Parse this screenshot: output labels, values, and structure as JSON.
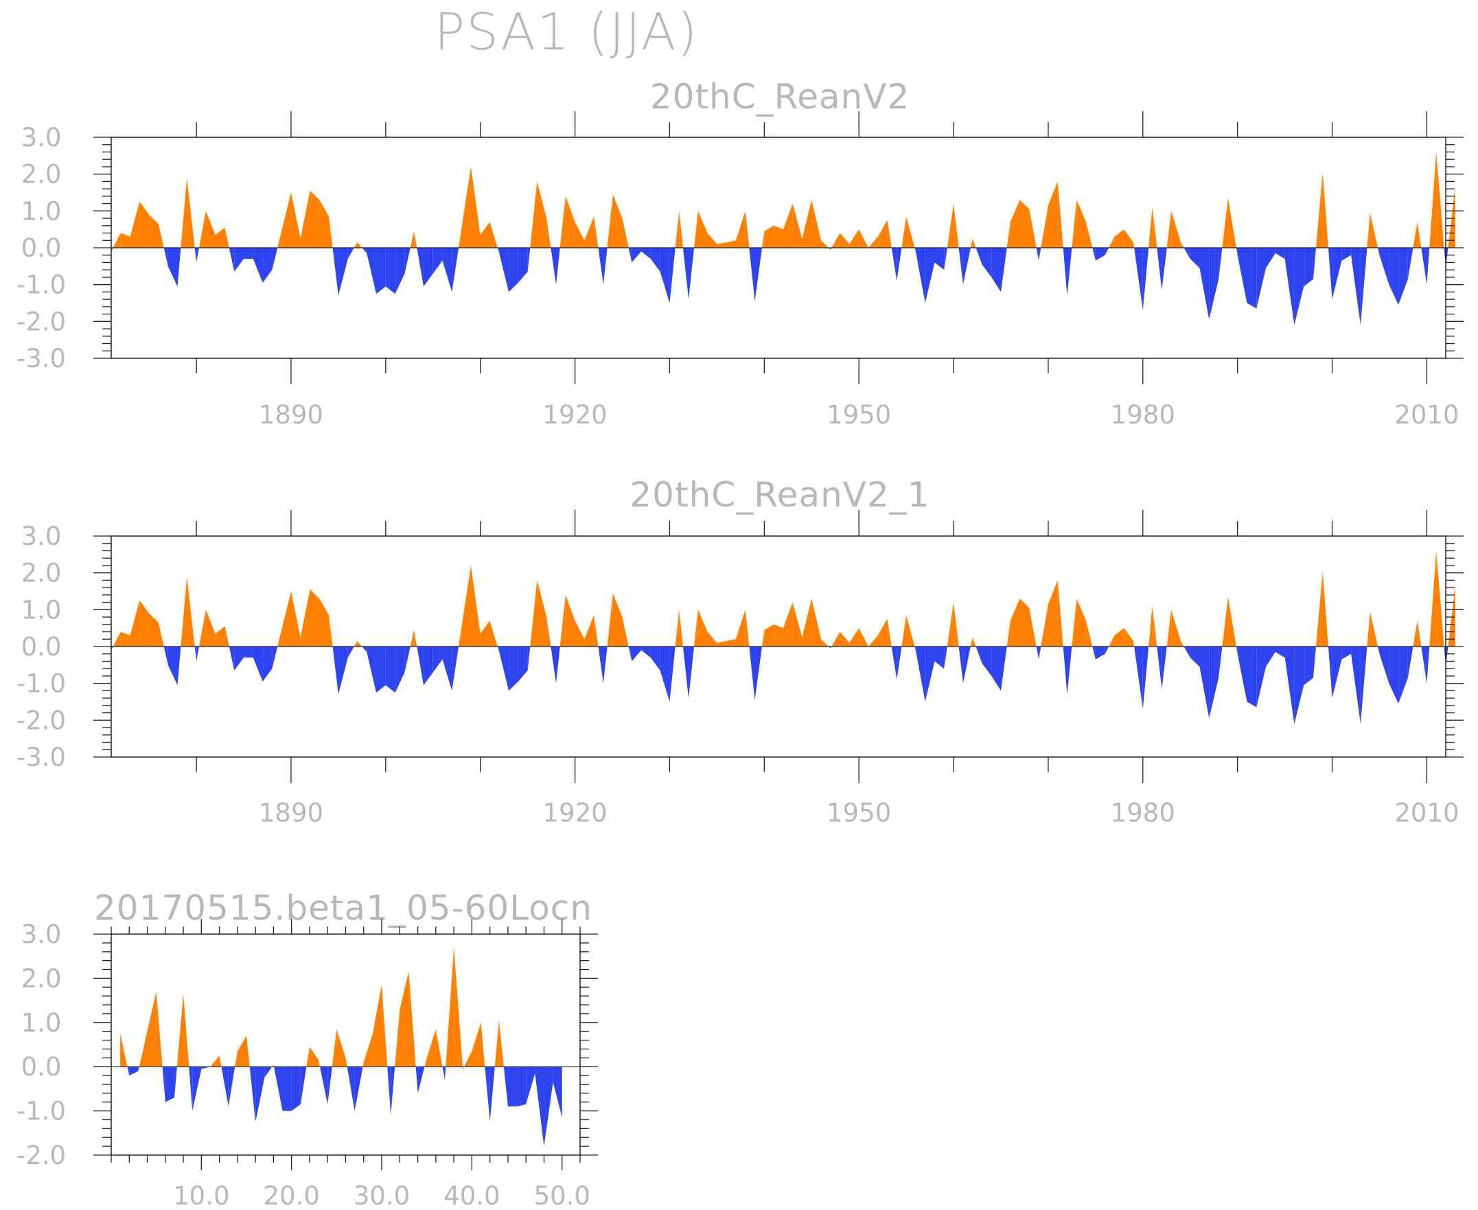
{
  "title": "PSA1  (JJA)",
  "colors": {
    "positive": "#ff8000",
    "negative": "#2e44f0",
    "text": "#b8b8b8"
  },
  "chart_data": [
    {
      "type": "area",
      "title": "20thC_ReanV2",
      "xlim": [
        1871,
        2012
      ],
      "ylim": [
        -3.0,
        3.0
      ],
      "xticks": [
        1890,
        1920,
        1950,
        1980,
        2010
      ],
      "xtick_labels": [
        "1890",
        "1920",
        "1950",
        "1980",
        "2010"
      ],
      "yticks": [
        -3.0,
        -2.0,
        -1.0,
        0.0,
        1.0,
        2.0,
        3.0
      ],
      "ytick_labels": [
        "-3.0",
        "-2.0",
        "-1.0",
        "0.0",
        "1.0",
        "2.0",
        "3.0"
      ],
      "x_start": 1871,
      "values": [
        -0.1,
        0.4,
        0.3,
        1.25,
        0.9,
        0.65,
        -0.5,
        -1.05,
        1.9,
        -0.4,
        1.0,
        0.35,
        0.55,
        -0.65,
        -0.3,
        -0.3,
        -0.95,
        -0.6,
        0.45,
        1.5,
        0.25,
        1.55,
        1.3,
        0.85,
        -1.3,
        -0.3,
        0.15,
        -0.15,
        -1.25,
        -1.05,
        -1.25,
        -0.7,
        0.45,
        -1.05,
        -0.7,
        -0.35,
        -1.2,
        0.5,
        2.2,
        0.35,
        0.7,
        -0.15,
        -1.2,
        -0.95,
        -0.65,
        1.8,
        0.8,
        -1.0,
        1.4,
        0.7,
        0.2,
        0.85,
        -1.0,
        1.45,
        0.8,
        -0.4,
        -0.1,
        -0.3,
        -0.65,
        -1.5,
        1.0,
        -1.4,
        1.0,
        0.4,
        0.1,
        0.15,
        0.2,
        1.0,
        -1.45,
        0.45,
        0.6,
        0.5,
        1.2,
        0.25,
        1.3,
        0.2,
        -0.05,
        0.4,
        0.1,
        0.5,
        0.0,
        0.3,
        0.75,
        -0.9,
        0.85,
        -0.1,
        -1.5,
        -0.4,
        -0.6,
        1.2,
        -1.0,
        0.25,
        -0.45,
        -0.8,
        -1.2,
        0.7,
        1.3,
        1.05,
        -0.35,
        1.15,
        1.8,
        -1.3,
        1.3,
        0.7,
        -0.35,
        -0.2,
        0.3,
        0.5,
        0.15,
        -1.7,
        1.1,
        -1.15,
        1.0,
        0.15,
        -0.3,
        -0.55,
        -1.95,
        -0.85,
        1.35,
        -0.2,
        -1.5,
        -1.65,
        -0.55,
        -0.15,
        -0.3,
        -2.1,
        -1.05,
        -0.85,
        2.05,
        -1.4,
        -0.35,
        -0.2,
        -2.1,
        0.95,
        -0.2,
        -1.0,
        -1.55,
        -0.85,
        0.7,
        -1.0,
        2.6,
        -0.55,
        1.65
      ]
    },
    {
      "type": "area",
      "title": "20thC_ReanV2_1",
      "xlim": [
        1871,
        2012
      ],
      "ylim": [
        -3.0,
        3.0
      ],
      "xticks": [
        1890,
        1920,
        1950,
        1980,
        2010
      ],
      "xtick_labels": [
        "1890",
        "1920",
        "1950",
        "1980",
        "2010"
      ],
      "yticks": [
        -3.0,
        -2.0,
        -1.0,
        0.0,
        1.0,
        2.0,
        3.0
      ],
      "ytick_labels": [
        "-3.0",
        "-2.0",
        "-1.0",
        "0.0",
        "1.0",
        "2.0",
        "3.0"
      ],
      "x_start": 1871,
      "values": [
        -0.1,
        0.4,
        0.3,
        1.25,
        0.9,
        0.65,
        -0.5,
        -1.05,
        1.9,
        -0.4,
        1.0,
        0.35,
        0.55,
        -0.65,
        -0.3,
        -0.3,
        -0.95,
        -0.6,
        0.45,
        1.5,
        0.25,
        1.55,
        1.3,
        0.85,
        -1.3,
        -0.3,
        0.15,
        -0.15,
        -1.25,
        -1.05,
        -1.25,
        -0.7,
        0.45,
        -1.05,
        -0.7,
        -0.35,
        -1.2,
        0.5,
        2.2,
        0.35,
        0.7,
        -0.15,
        -1.2,
        -0.95,
        -0.65,
        1.8,
        0.8,
        -1.0,
        1.4,
        0.7,
        0.2,
        0.85,
        -1.0,
        1.45,
        0.8,
        -0.4,
        -0.1,
        -0.3,
        -0.65,
        -1.5,
        1.0,
        -1.4,
        1.0,
        0.4,
        0.1,
        0.15,
        0.2,
        1.0,
        -1.45,
        0.45,
        0.6,
        0.5,
        1.2,
        0.25,
        1.3,
        0.2,
        -0.05,
        0.4,
        0.1,
        0.5,
        0.0,
        0.3,
        0.75,
        -0.9,
        0.85,
        -0.1,
        -1.5,
        -0.4,
        -0.6,
        1.2,
        -1.0,
        0.25,
        -0.45,
        -0.8,
        -1.2,
        0.7,
        1.3,
        1.05,
        -0.35,
        1.15,
        1.8,
        -1.3,
        1.3,
        0.7,
        -0.35,
        -0.2,
        0.3,
        0.5,
        0.15,
        -1.7,
        1.1,
        -1.15,
        1.0,
        0.15,
        -0.3,
        -0.55,
        -1.95,
        -0.85,
        1.35,
        -0.2,
        -1.5,
        -1.65,
        -0.55,
        -0.15,
        -0.3,
        -2.1,
        -1.05,
        -0.85,
        2.05,
        -1.4,
        -0.35,
        -0.2,
        -2.1,
        0.95,
        -0.2,
        -1.0,
        -1.55,
        -0.85,
        0.7,
        -1.0,
        2.6,
        -0.55,
        1.65
      ]
    },
    {
      "type": "area",
      "title": "20170515.beta1_05-60Locn",
      "xlim": [
        0,
        52
      ],
      "ylim": [
        -2.0,
        3.0
      ],
      "xticks": [
        10,
        20,
        30,
        40,
        50
      ],
      "xtick_labels": [
        "10.0",
        "20.0",
        "30.0",
        "40.0",
        "50.0"
      ],
      "yticks": [
        -2.0,
        -1.0,
        0.0,
        1.0,
        2.0,
        3.0
      ],
      "ytick_labels": [
        "-2.0",
        "-1.0",
        "0.0",
        "1.0",
        "2.0",
        "3.0"
      ],
      "x_start": 1,
      "values": [
        0.75,
        -0.2,
        -0.1,
        0.8,
        1.7,
        -0.8,
        -0.7,
        1.65,
        -1.0,
        -0.05,
        0.0,
        0.25,
        -0.9,
        0.35,
        0.7,
        -1.25,
        -0.25,
        0.05,
        -1.0,
        -1.0,
        -0.85,
        0.45,
        0.15,
        -0.85,
        0.85,
        0.2,
        -1.0,
        0.1,
        0.75,
        1.85,
        -1.1,
        1.3,
        2.15,
        -0.6,
        0.2,
        0.85,
        -0.3,
        2.7,
        -0.05,
        0.35,
        1.0,
        -1.25,
        1.05,
        -0.9,
        -0.9,
        -0.85,
        -0.15,
        -1.8,
        -0.35,
        -1.15
      ]
    }
  ]
}
